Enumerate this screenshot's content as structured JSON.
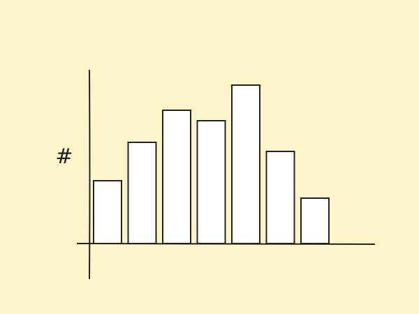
{
  "chart_data": {
    "type": "bar",
    "ylabel": "#",
    "categories": [
      null,
      null,
      null,
      null,
      null,
      null,
      null
    ],
    "values": [
      90,
      145,
      191,
      176,
      227,
      132,
      65
    ],
    "color": "#ffffff",
    "ylim": [
      0,
      250
    ],
    "grid": false
  }
}
